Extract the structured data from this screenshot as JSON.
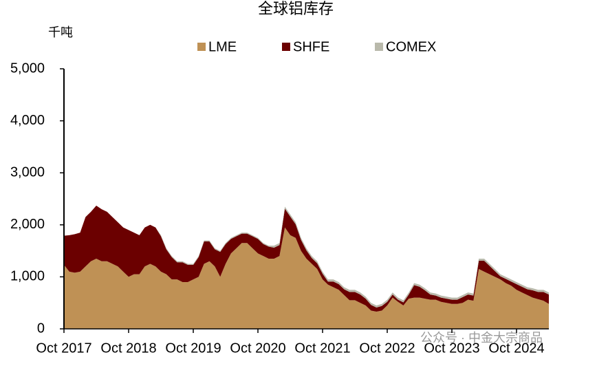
{
  "chart_data": {
    "type": "stacked-area",
    "title": "全球铝库存",
    "y_label": "千吨",
    "watermark": "公众号 · 中金大宗商品",
    "x": [
      "2017-10",
      "2017-11",
      "2017-12",
      "2018-01",
      "2018-02",
      "2018-03",
      "2018-04",
      "2018-05",
      "2018-06",
      "2018-07",
      "2018-08",
      "2018-09",
      "2018-10",
      "2018-11",
      "2018-12",
      "2019-01",
      "2019-02",
      "2019-03",
      "2019-04",
      "2019-05",
      "2019-06",
      "2019-07",
      "2019-08",
      "2019-09",
      "2019-10",
      "2019-11",
      "2019-12",
      "2020-01",
      "2020-02",
      "2020-03",
      "2020-04",
      "2020-05",
      "2020-06",
      "2020-07",
      "2020-08",
      "2020-09",
      "2020-10",
      "2020-11",
      "2020-12",
      "2021-01",
      "2021-02",
      "2021-03",
      "2021-04",
      "2021-05",
      "2021-06",
      "2021-07",
      "2021-08",
      "2021-09",
      "2021-10",
      "2021-11",
      "2021-12",
      "2022-01",
      "2022-02",
      "2022-03",
      "2022-04",
      "2022-05",
      "2022-06",
      "2022-07",
      "2022-08",
      "2022-09",
      "2022-10",
      "2022-11",
      "2022-12",
      "2023-01",
      "2023-02",
      "2023-03",
      "2023-04",
      "2023-05",
      "2023-06",
      "2023-07",
      "2023-08",
      "2023-09",
      "2023-10",
      "2023-11",
      "2023-12",
      "2024-01",
      "2024-02",
      "2024-03",
      "2024-04",
      "2024-05",
      "2024-06",
      "2024-07",
      "2024-08",
      "2024-09",
      "2024-10",
      "2024-11",
      "2024-12",
      "2025-01",
      "2025-02",
      "2025-03",
      "2025-04"
    ],
    "series": [
      {
        "name": "LME",
        "color": "#bf9155",
        "values": [
          1230,
          1100,
          1080,
          1100,
          1200,
          1300,
          1350,
          1300,
          1300,
          1250,
          1200,
          1100,
          1000,
          1050,
          1050,
          1200,
          1250,
          1200,
          1100,
          1050,
          950,
          950,
          900,
          900,
          950,
          1000,
          1250,
          1300,
          1200,
          1000,
          1250,
          1450,
          1550,
          1650,
          1650,
          1550,
          1450,
          1400,
          1350,
          1350,
          1400,
          1950,
          1800,
          1750,
          1500,
          1350,
          1250,
          1150,
          950,
          850,
          800,
          750,
          650,
          550,
          550,
          500,
          450,
          350,
          330,
          350,
          450,
          600,
          520,
          450,
          580,
          600,
          600,
          580,
          560,
          560,
          520,
          500,
          480,
          480,
          500,
          560,
          540,
          1150,
          1100,
          1050,
          1000,
          950,
          880,
          830,
          750,
          700,
          650,
          600,
          570,
          540,
          480
        ]
      },
      {
        "name": "SHFE",
        "color": "#6b0000",
        "values": [
          560,
          700,
          740,
          750,
          950,
          950,
          1020,
          1000,
          950,
          900,
          850,
          850,
          900,
          800,
          750,
          750,
          750,
          750,
          680,
          480,
          430,
          330,
          380,
          330,
          280,
          380,
          430,
          380,
          330,
          480,
          380,
          280,
          230,
          180,
          180,
          230,
          280,
          230,
          230,
          210,
          210,
          360,
          360,
          260,
          210,
          160,
          110,
          110,
          110,
          60,
          110,
          110,
          110,
          160,
          160,
          160,
          130,
          110,
          80,
          90,
          70,
          60,
          40,
          60,
          80,
          240,
          210,
          160,
          100,
          80,
          80,
          80,
          80,
          80,
          110,
          100,
          100,
          160,
          210,
          160,
          110,
          60,
          80,
          80,
          110,
          110,
          110,
          140,
          140,
          170,
          180
        ]
      },
      {
        "name": "COMEX",
        "color": "#b9b9ab",
        "values": [
          0,
          0,
          0,
          0,
          0,
          0,
          0,
          0,
          0,
          0,
          0,
          0,
          0,
          0,
          0,
          0,
          0,
          0,
          20,
          20,
          20,
          20,
          20,
          20,
          20,
          20,
          20,
          20,
          20,
          20,
          20,
          20,
          20,
          20,
          20,
          20,
          20,
          20,
          20,
          40,
          40,
          40,
          40,
          40,
          40,
          40,
          40,
          40,
          40,
          40,
          40,
          40,
          40,
          40,
          40,
          40,
          40,
          40,
          40,
          40,
          40,
          40,
          40,
          40,
          40,
          40,
          40,
          40,
          40,
          40,
          40,
          40,
          40,
          40,
          40,
          40,
          40,
          40,
          40,
          40,
          40,
          40,
          40,
          40,
          40,
          40,
          40,
          40,
          40,
          40,
          40
        ]
      }
    ],
    "ylim": [
      0,
      5000
    ],
    "yticks": [
      0,
      {
        "value": 1000,
        "label": "1,000"
      },
      {
        "value": 2000,
        "label": "2,000"
      },
      {
        "value": 3000,
        "label": "3,000"
      },
      {
        "value": 4000,
        "label": "4,000"
      },
      {
        "value": 5000,
        "label": "5,000"
      }
    ],
    "xticks": [
      {
        "value": "2017-10",
        "label": "Oct 2017"
      },
      {
        "value": "2018-10",
        "label": "Oct 2018"
      },
      {
        "value": "2019-10",
        "label": "Oct 2019"
      },
      {
        "value": "2020-10",
        "label": "Oct 2020"
      },
      {
        "value": "2021-10",
        "label": "Oct 2021"
      },
      {
        "value": "2022-10",
        "label": "Oct 2022"
      },
      {
        "value": "2023-10",
        "label": "Oct 2023"
      },
      {
        "value": "2024-10",
        "label": "Oct 2024"
      }
    ],
    "legend": "top",
    "grid": false
  }
}
